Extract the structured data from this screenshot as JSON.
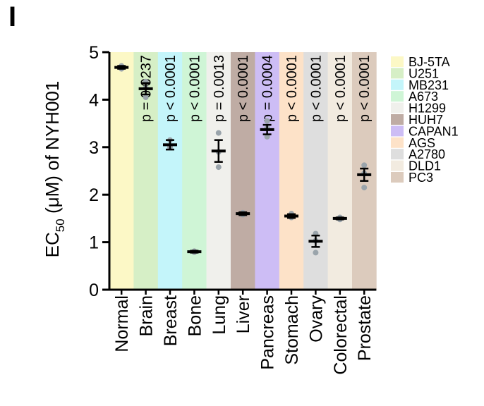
{
  "panel_label": "I",
  "chart_data": {
    "type": "scatter",
    "title": "",
    "xlabel": "",
    "ylabel": {
      "prefix": "EC",
      "subscript": "50",
      "suffix": " (μM) of NYH001"
    },
    "ylim": [
      0,
      5
    ],
    "yticks": [
      "0",
      "1",
      "2",
      "3",
      "4",
      "5"
    ],
    "grid": false,
    "legend_position": "right",
    "categories": [
      "Normal",
      "Brain",
      "Breast",
      "Bone",
      "Lung",
      "Liver",
      "Pancreas",
      "Stomach",
      "Ovary",
      "Colorectal",
      "Prostate"
    ],
    "cell_lines": [
      "BJ-5TA",
      "U251",
      "MB231",
      "A673",
      "H1299",
      "HUH7",
      "CAPAN1",
      "AGS",
      "A2780",
      "DLD1",
      "PC3"
    ],
    "colors": [
      "#fcf8c6",
      "#d6efc6",
      "#c4f5fa",
      "#cff5d6",
      "#f0f0ec",
      "#bfaca4",
      "#cdbdf5",
      "#fde2c8",
      "#dedede",
      "#f2ebe0",
      "#dccbbd"
    ],
    "means": [
      4.68,
      4.23,
      3.05,
      0.8,
      2.92,
      1.6,
      3.37,
      1.55,
      1.02,
      1.5,
      2.42
    ],
    "errors": [
      0.03,
      0.12,
      0.1,
      0.02,
      0.23,
      0.03,
      0.1,
      0.04,
      0.12,
      0.02,
      0.13
    ],
    "points": [
      [
        4.65,
        4.68,
        4.71
      ],
      [
        4.05,
        4.25,
        4.38
      ],
      [
        3.0,
        3.02,
        3.15
      ],
      [
        0.79,
        0.8,
        0.81
      ],
      [
        2.58,
        2.9,
        3.3
      ],
      [
        1.58,
        1.6,
        1.62
      ],
      [
        3.22,
        3.4,
        3.55
      ],
      [
        1.52,
        1.55,
        1.6
      ],
      [
        0.78,
        1.03,
        1.18
      ],
      [
        1.48,
        1.5,
        1.52
      ],
      [
        2.15,
        2.45,
        2.62
      ]
    ],
    "pvalues": [
      "",
      "p = 0.0237",
      "p < 0.0001",
      "p < 0.0001",
      "p = 0.0013",
      "p < 0.0001",
      "p = 0.0004",
      "p < 0.0001",
      "p < 0.0001",
      "p < 0.0001",
      "p < 0.0001"
    ]
  }
}
